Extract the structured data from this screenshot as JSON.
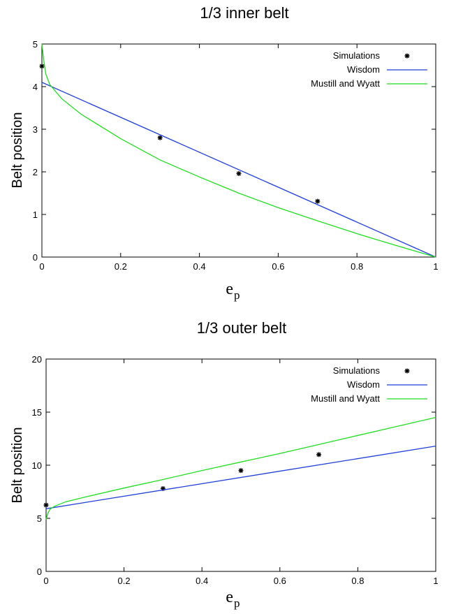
{
  "chart_data": [
    {
      "type": "line",
      "title": "1/3 inner belt",
      "xlabel_main": "e",
      "xlabel_sub": "p",
      "ylabel": "Belt position",
      "xlim": [
        0,
        1
      ],
      "ylim": [
        0,
        5
      ],
      "xticks": [
        "0",
        "0.2",
        "0.4",
        "0.6",
        "0.8",
        "1"
      ],
      "yticks": [
        "0",
        "1",
        "2",
        "3",
        "4",
        "5"
      ],
      "legend_position": "top-right",
      "series": [
        {
          "name": "Simulations",
          "kind": "scatter",
          "color": "#000000",
          "points": [
            [
              0.0,
              4.48
            ],
            [
              0.3,
              2.8
            ],
            [
              0.5,
              1.96
            ],
            [
              0.7,
              1.31
            ]
          ]
        },
        {
          "name": "Wisdom",
          "kind": "line",
          "color": "#1f3fd6",
          "points": [
            [
              0.0,
              4.1
            ],
            [
              1.0,
              0.0
            ]
          ]
        },
        {
          "name": "Mustill and Wyatt",
          "kind": "line",
          "color": "#22dd22",
          "points": [
            [
              0.0,
              5.0
            ],
            [
              0.005,
              4.6
            ],
            [
              0.01,
              4.3
            ],
            [
              0.02,
              4.05
            ],
            [
              0.05,
              3.72
            ],
            [
              0.1,
              3.35
            ],
            [
              0.2,
              2.78
            ],
            [
              0.3,
              2.28
            ],
            [
              0.4,
              1.88
            ],
            [
              0.5,
              1.5
            ],
            [
              0.6,
              1.16
            ],
            [
              0.7,
              0.85
            ],
            [
              0.8,
              0.55
            ],
            [
              0.9,
              0.27
            ],
            [
              1.0,
              0.0
            ]
          ]
        }
      ]
    },
    {
      "type": "line",
      "title": "1/3 outer belt",
      "xlabel_main": "e",
      "xlabel_sub": "p",
      "ylabel": "Belt position",
      "xlim": [
        0,
        1
      ],
      "ylim": [
        0,
        20
      ],
      "xticks": [
        "0",
        "0.2",
        "0.4",
        "0.6",
        "0.8",
        "1"
      ],
      "yticks": [
        "0",
        "5",
        "10",
        "15",
        "20"
      ],
      "legend_position": "top-right",
      "series": [
        {
          "name": "Simulations",
          "kind": "scatter",
          "color": "#000000",
          "points": [
            [
              0.0,
              6.25
            ],
            [
              0.3,
              7.8
            ],
            [
              0.5,
              9.5
            ],
            [
              0.7,
              11.0
            ]
          ]
        },
        {
          "name": "Wisdom",
          "kind": "line",
          "color": "#1f3fd6",
          "points": [
            [
              0.0,
              5.9
            ],
            [
              1.0,
              11.8
            ]
          ]
        },
        {
          "name": "Mustill and Wyatt",
          "kind": "line",
          "color": "#22dd22",
          "points": [
            [
              0.0,
              4.9
            ],
            [
              0.005,
              5.5
            ],
            [
              0.01,
              5.85
            ],
            [
              0.02,
              6.1
            ],
            [
              0.05,
              6.55
            ],
            [
              0.1,
              7.0
            ],
            [
              0.2,
              7.85
            ],
            [
              0.3,
              8.65
            ],
            [
              0.4,
              9.5
            ],
            [
              0.5,
              10.3
            ],
            [
              0.6,
              11.1
            ],
            [
              0.7,
              11.95
            ],
            [
              0.8,
              12.8
            ],
            [
              0.9,
              13.65
            ],
            [
              1.0,
              14.5
            ]
          ]
        }
      ]
    }
  ]
}
